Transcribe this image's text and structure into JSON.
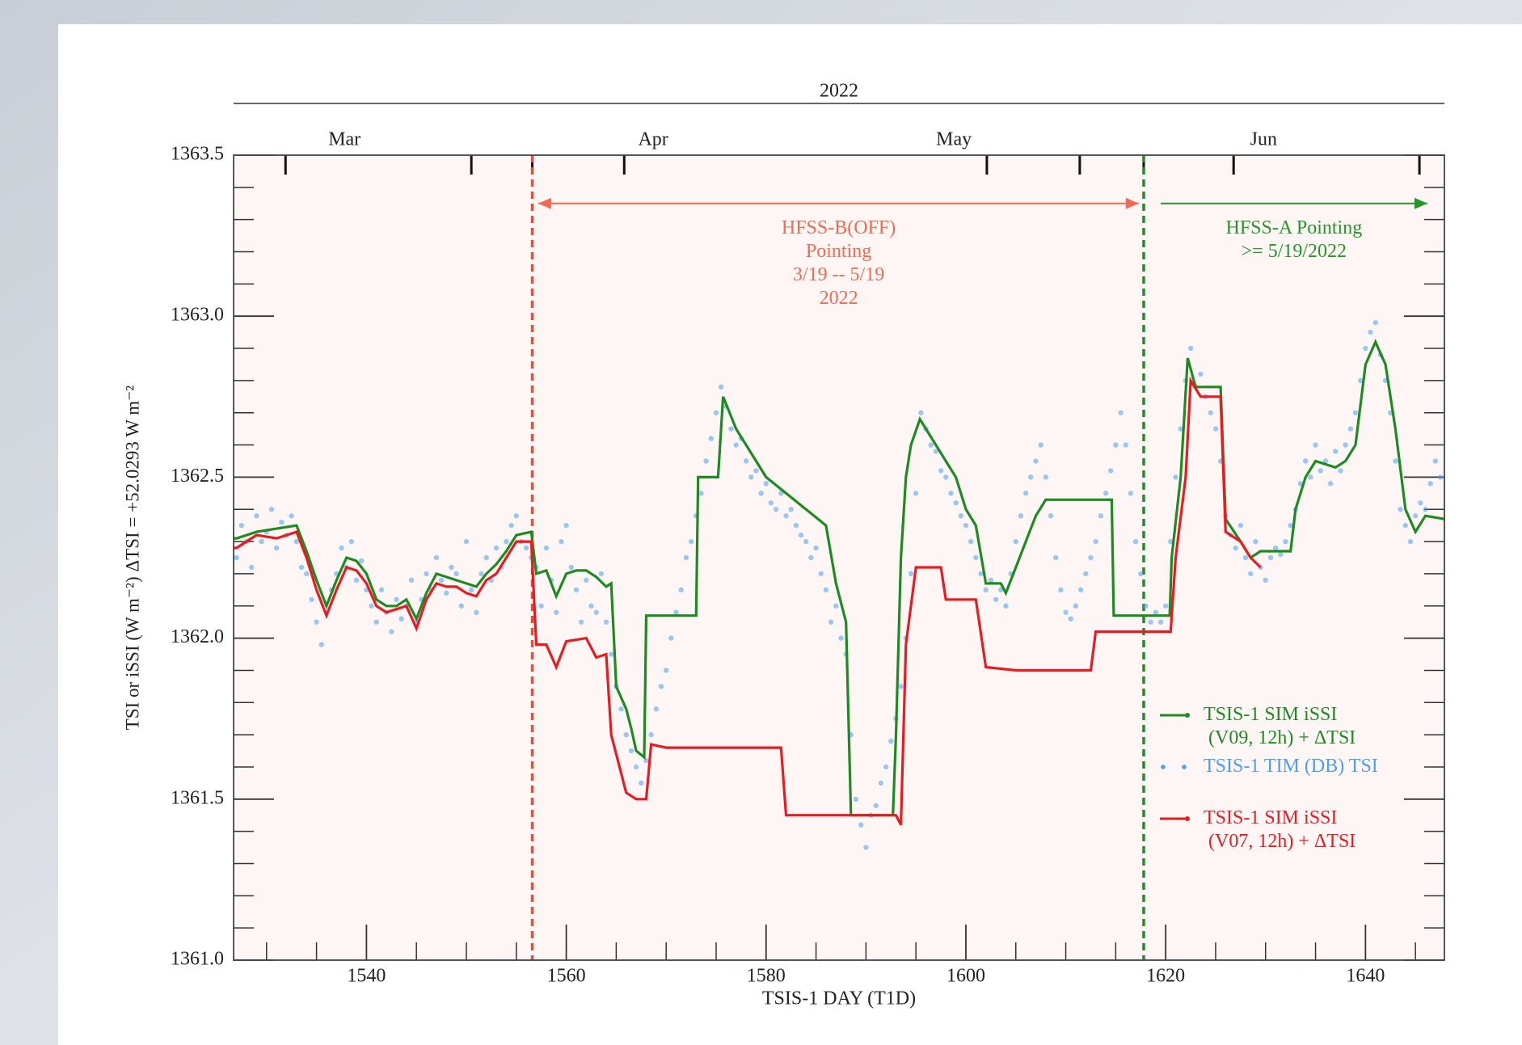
{
  "chart_data": {
    "type": "line",
    "xlabel": "TSIS-1 DAY (T1D)",
    "ylabel": "TSI or iSSI (W m⁻²) ΔTSI = +52.0293 W m⁻²",
    "xlim": [
      1526.7,
      1647.9
    ],
    "ylim": [
      1361.0,
      1363.5
    ],
    "xticks": [
      1540,
      1560,
      1580,
      1600,
      1620,
      1640
    ],
    "xminorticks": [
      1530,
      1535,
      1545,
      1550,
      1555,
      1565,
      1570,
      1575,
      1585,
      1590,
      1595,
      1605,
      1610,
      1615,
      1625,
      1630,
      1635,
      1645
    ],
    "yticks": [
      {
        "value": 1361.0,
        "label": "1361.0"
      },
      1361.5,
      {
        "value": 1362.0,
        "label": "1362.0"
      },
      1362.5,
      {
        "value": 1363.0,
        "label": "1363.0"
      },
      1363.5
    ],
    "yminorticks": [
      1361.1,
      1361.2,
      1361.3,
      1361.4,
      1361.6,
      1361.7,
      1361.8,
      1361.9,
      1362.1,
      1362.2,
      1362.3,
      1362.4,
      1362.6,
      1362.7,
      1362.8,
      1362.9,
      1363.1,
      1363.2,
      1363.3,
      1363.4
    ],
    "top_axis": {
      "title": "2022",
      "labels": [
        {
          "value": 1537.8,
          "label": "Mar"
        },
        {
          "value": 1568.7,
          "label": "Apr"
        },
        {
          "value": 1598.8,
          "label": "May"
        },
        {
          "value": 1629.8,
          "label": "Jun"
        }
      ],
      "ticks": [
        1531.9,
        1550.5,
        1556.6,
        1565.8,
        1602.1,
        1611.4,
        1617.8,
        1626.8,
        1645.4
      ]
    },
    "legend": "lower right",
    "vlines": [
      {
        "x": 1556.6,
        "color": "#f04a30"
      },
      {
        "x": 1617.8,
        "color": "#1d8f2a"
      }
    ],
    "annotations": [
      {
        "text": "HFSS-B(OFF)\nPointing\n3/19 -- 5/19\n2022",
        "color": "#f26a4f",
        "x": [
          1557.2,
          1617.3
        ],
        "y": 1363.35,
        "double": true
      },
      {
        "text": "HFSS-A Pointing\n>= 5/19/2022",
        "color": "#24962a",
        "x": [
          1619.5,
          1646.2
        ],
        "y": 1363.35,
        "double": false
      }
    ],
    "series": [
      {
        "name": "TSIS-1 SIM iSSI\n (V09, 12h) + ΔTSI",
        "type": "line",
        "color": "#1e8a22",
        "x": [
          1526.7,
          1527,
          1529,
          1531,
          1533,
          1534,
          1535,
          1536,
          1537,
          1538,
          1539,
          1540,
          1541,
          1542,
          1543,
          1544,
          1545,
          1546,
          1547,
          1548,
          1549,
          1550,
          1551,
          1552,
          1553,
          1554,
          1555,
          1556.5,
          1557,
          1558,
          1559,
          1560,
          1561,
          1562,
          1563,
          1564,
          1564.5,
          1565,
          1566,
          1566.5,
          1567,
          1567.8,
          1568,
          1573,
          1573.2,
          1575.2,
          1575.7,
          1577,
          1578,
          1580,
          1582,
          1584,
          1586,
          1587,
          1588,
          1588.5,
          1589,
          1592.7,
          1593,
          1593.5,
          1594,
          1594.5,
          1595.4,
          1597,
          1598,
          1599,
          1600,
          1601,
          1602,
          1603.5,
          1604,
          1605,
          1606,
          1607,
          1608,
          1614.6,
          1614.8,
          1620.4,
          1620.6,
          1621.5,
          1622.2,
          1623,
          1625.5,
          1626,
          1627.5,
          1628.5,
          1629.5,
          1632.5,
          1633,
          1634,
          1635,
          1637,
          1638,
          1639,
          1640,
          1641,
          1642,
          1643,
          1644,
          1645,
          1646,
          1647.9
        ],
        "values": [
          1362.31,
          1362.31,
          1362.33,
          1362.34,
          1362.35,
          1362.27,
          1362.18,
          1362.1,
          1362.18,
          1362.25,
          1362.24,
          1362.2,
          1362.12,
          1362.1,
          1362.1,
          1362.12,
          1362.06,
          1362.14,
          1362.2,
          1362.19,
          1362.18,
          1362.17,
          1362.16,
          1362.2,
          1362.23,
          1362.27,
          1362.32,
          1362.33,
          1362.2,
          1362.21,
          1362.13,
          1362.2,
          1362.21,
          1362.21,
          1362.19,
          1362.16,
          1362.17,
          1361.85,
          1361.78,
          1361.72,
          1361.65,
          1361.63,
          1362.07,
          1362.07,
          1362.5,
          1362.5,
          1362.75,
          1362.65,
          1362.6,
          1362.5,
          1362.45,
          1362.4,
          1362.35,
          1362.17,
          1362.05,
          1361.45,
          1361.45,
          1361.45,
          1361.7,
          1362.25,
          1362.5,
          1362.6,
          1362.68,
          1362.6,
          1362.55,
          1362.5,
          1362.4,
          1362.35,
          1362.17,
          1362.17,
          1362.14,
          1362.22,
          1362.3,
          1362.38,
          1362.43,
          1362.43,
          1362.07,
          1362.07,
          1362.25,
          1362.5,
          1362.87,
          1362.78,
          1362.78,
          1362.37,
          1362.3,
          1362.25,
          1362.27,
          1362.27,
          1362.4,
          1362.5,
          1362.55,
          1362.53,
          1362.55,
          1362.6,
          1362.85,
          1362.92,
          1362.85,
          1362.65,
          1362.4,
          1362.33,
          1362.38,
          1362.37
        ]
      },
      {
        "name": "TSIS-1 TIM (DB) TSI",
        "type": "scatter",
        "color": "#4a9ff0",
        "x": [
          1527,
          1527.5,
          1528,
          1528.5,
          1529,
          1529.5,
          1530,
          1530.5,
          1531,
          1531.5,
          1532,
          1532.5,
          1533,
          1533.5,
          1534,
          1534.5,
          1535,
          1535.5,
          1536,
          1536.5,
          1537,
          1537.5,
          1538,
          1538.5,
          1539,
          1539.5,
          1540,
          1540.5,
          1541,
          1541.5,
          1542,
          1542.5,
          1543,
          1543.5,
          1544,
          1544.5,
          1545,
          1545.5,
          1546,
          1546.5,
          1547,
          1547.5,
          1548,
          1548.5,
          1549,
          1549.5,
          1550,
          1550.5,
          1551,
          1551.5,
          1552,
          1552.5,
          1553,
          1553.5,
          1554,
          1554.5,
          1555,
          1555.5,
          1556,
          1556.5,
          1557,
          1557.5,
          1558,
          1558.5,
          1559,
          1559.5,
          1560,
          1560.5,
          1561,
          1561.5,
          1562,
          1562.5,
          1563,
          1563.5,
          1564,
          1564.5,
          1565,
          1565.5,
          1566,
          1566.5,
          1567,
          1567.5,
          1568,
          1568.5,
          1569,
          1569.5,
          1570,
          1570.5,
          1571,
          1571.5,
          1572,
          1572.5,
          1573,
          1573.5,
          1574,
          1574.5,
          1575,
          1575.5,
          1576,
          1576.5,
          1577,
          1577.5,
          1578,
          1578.5,
          1579,
          1579.5,
          1580,
          1580.5,
          1581,
          1581.5,
          1582,
          1582.5,
          1583,
          1583.5,
          1584,
          1584.5,
          1585,
          1585.5,
          1586,
          1586.5,
          1587,
          1587.5,
          1588,
          1588.5,
          1589,
          1589.5,
          1590,
          1590.5,
          1591,
          1591.5,
          1592,
          1592.5,
          1593,
          1593.5,
          1594,
          1594.5,
          1595,
          1595.5,
          1596,
          1596.5,
          1597,
          1597.5,
          1598,
          1598.5,
          1599,
          1599.5,
          1600,
          1600.5,
          1601,
          1601.5,
          1602,
          1602.5,
          1603,
          1603.5,
          1604,
          1604.5,
          1605,
          1605.5,
          1606,
          1606.5,
          1607,
          1607.5,
          1608,
          1608.5,
          1609,
          1609.5,
          1610,
          1610.5,
          1611,
          1611.5,
          1612,
          1612.5,
          1613,
          1613.5,
          1614,
          1614.5,
          1615,
          1615.5,
          1616,
          1616.5,
          1617,
          1617.5,
          1618,
          1618.5,
          1619,
          1619.5,
          1620,
          1620.5,
          1621,
          1621.5,
          1622,
          1622.5,
          1623,
          1623.5,
          1624,
          1624.5,
          1625,
          1625.5,
          1626,
          1626.5,
          1627,
          1627.5,
          1628,
          1628.5,
          1629,
          1629.5,
          1630,
          1630.5,
          1631,
          1631.5,
          1632,
          1632.5,
          1633,
          1633.5,
          1634,
          1634.5,
          1635,
          1635.5,
          1636,
          1636.5,
          1637,
          1637.5,
          1638,
          1638.5,
          1639,
          1639.5,
          1640,
          1640.5,
          1641,
          1641.5,
          1642,
          1642.5,
          1643,
          1643.5,
          1644,
          1644.5,
          1645,
          1645.5,
          1646,
          1646.5,
          1647,
          1647.5
        ],
        "values": [
          1362.25,
          1362.35,
          1362.3,
          1362.22,
          1362.38,
          1362.3,
          1362.33,
          1362.4,
          1362.28,
          1362.36,
          1362.32,
          1362.38,
          1362.3,
          1362.22,
          1362.2,
          1362.12,
          1362.05,
          1361.98,
          1362.08,
          1362.15,
          1362.2,
          1362.28,
          1362.22,
          1362.3,
          1362.18,
          1362.24,
          1362.15,
          1362.1,
          1362.05,
          1362.15,
          1362.08,
          1362.02,
          1362.12,
          1362.06,
          1362.1,
          1362.18,
          1362.05,
          1362.12,
          1362.2,
          1362.15,
          1362.25,
          1362.18,
          1362.14,
          1362.22,
          1362.2,
          1362.1,
          1362.3,
          1362.15,
          1362.08,
          1362.2,
          1362.25,
          1362.18,
          1362.28,
          1362.22,
          1362.3,
          1362.35,
          1362.38,
          1362.3,
          1362.28,
          1362.25,
          1362.22,
          1362.1,
          1362.28,
          1362.18,
          1362.08,
          1362.3,
          1362.35,
          1362.22,
          1362.15,
          1362.05,
          1362.18,
          1362.1,
          1362.08,
          1362.2,
          1362.05,
          1361.95,
          1361.85,
          1361.78,
          1361.7,
          1361.65,
          1361.6,
          1361.55,
          1361.62,
          1361.7,
          1361.78,
          1361.85,
          1361.9,
          1362.0,
          1362.08,
          1362.15,
          1362.25,
          1362.3,
          1362.38,
          1362.45,
          1362.55,
          1362.62,
          1362.7,
          1362.78,
          1362.72,
          1362.65,
          1362.6,
          1362.62,
          1362.55,
          1362.5,
          1362.52,
          1362.45,
          1362.48,
          1362.42,
          1362.4,
          1362.45,
          1362.38,
          1362.4,
          1362.35,
          1362.32,
          1362.3,
          1362.25,
          1362.28,
          1362.2,
          1362.15,
          1362.05,
          1362.1,
          1362.0,
          1361.95,
          1361.7,
          1361.5,
          1361.42,
          1361.35,
          1361.45,
          1361.48,
          1361.55,
          1361.6,
          1361.68,
          1361.75,
          1361.85,
          1362.0,
          1362.2,
          1362.45,
          1362.7,
          1362.65,
          1362.6,
          1362.58,
          1362.52,
          1362.5,
          1362.45,
          1362.42,
          1362.38,
          1362.35,
          1362.3,
          1362.25,
          1362.2,
          1362.15,
          1362.18,
          1362.12,
          1362.15,
          1362.1,
          1362.2,
          1362.3,
          1362.38,
          1362.45,
          1362.5,
          1362.55,
          1362.6,
          1362.5,
          1362.38,
          1362.25,
          1362.15,
          1362.08,
          1362.06,
          1362.1,
          1362.15,
          1362.2,
          1362.25,
          1362.3,
          1362.38,
          1362.45,
          1362.52,
          1362.6,
          1362.7,
          1362.6,
          1362.45,
          1362.3,
          1362.2,
          1362.1,
          1362.05,
          1362.08,
          1362.05,
          1362.1,
          1362.3,
          1362.5,
          1362.65,
          1362.8,
          1362.9,
          1362.78,
          1362.82,
          1362.75,
          1362.7,
          1362.65,
          1362.55,
          1362.38,
          1362.32,
          1362.28,
          1362.35,
          1362.25,
          1362.2,
          1362.3,
          1362.22,
          1362.18,
          1362.25,
          1362.28,
          1362.26,
          1362.3,
          1362.35,
          1362.4,
          1362.48,
          1362.55,
          1362.5,
          1362.6,
          1362.52,
          1362.55,
          1362.48,
          1362.58,
          1362.52,
          1362.6,
          1362.65,
          1362.7,
          1362.8,
          1362.9,
          1362.95,
          1362.98,
          1362.88,
          1362.8,
          1362.7,
          1362.55,
          1362.4,
          1362.35,
          1362.3,
          1362.38,
          1362.42,
          1362.4,
          1362.48,
          1362.55,
          1362.5
        ]
      },
      {
        "name": "TSIS-1 SIM iSSI\n (V07, 12h) + ΔTSI",
        "type": "line",
        "color": "#e81c20",
        "x": [
          1526.7,
          1527,
          1529,
          1531,
          1533,
          1534,
          1535,
          1536,
          1537,
          1538,
          1539,
          1540,
          1541,
          1542,
          1543,
          1544,
          1545,
          1546,
          1547,
          1548,
          1549,
          1550,
          1551,
          1552,
          1553,
          1554,
          1555,
          1556.5,
          1557,
          1558,
          1559,
          1560,
          1562,
          1563,
          1564,
          1564.5,
          1566,
          1567,
          1568,
          1568.5,
          1570,
          1581.5,
          1582,
          1593,
          1593.5,
          1594,
          1595,
          1597.5,
          1598,
          1601,
          1602,
          1605,
          1612.5,
          1613,
          1620.5,
          1621,
          1622,
          1622.5,
          1623.5,
          1625.5,
          1626,
          1627.5,
          1628.5,
          1629.5
        ],
        "values": [
          1362.28,
          1362.28,
          1362.32,
          1362.31,
          1362.33,
          1362.25,
          1362.15,
          1362.07,
          1362.15,
          1362.22,
          1362.21,
          1362.17,
          1362.1,
          1362.08,
          1362.09,
          1362.1,
          1362.03,
          1362.12,
          1362.17,
          1362.16,
          1362.16,
          1362.14,
          1362.13,
          1362.18,
          1362.2,
          1362.25,
          1362.3,
          1362.3,
          1361.98,
          1361.98,
          1361.91,
          1361.99,
          1362.0,
          1361.94,
          1361.95,
          1361.7,
          1361.52,
          1361.5,
          1361.5,
          1361.67,
          1361.66,
          1361.66,
          1361.45,
          1361.45,
          1361.42,
          1361.98,
          1362.22,
          1362.22,
          1362.12,
          1362.12,
          1361.91,
          1361.9,
          1361.9,
          1362.02,
          1362.02,
          1362.25,
          1362.5,
          1362.8,
          1362.75,
          1362.75,
          1362.33,
          1362.3,
          1362.25,
          1362.22
        ]
      }
    ]
  }
}
